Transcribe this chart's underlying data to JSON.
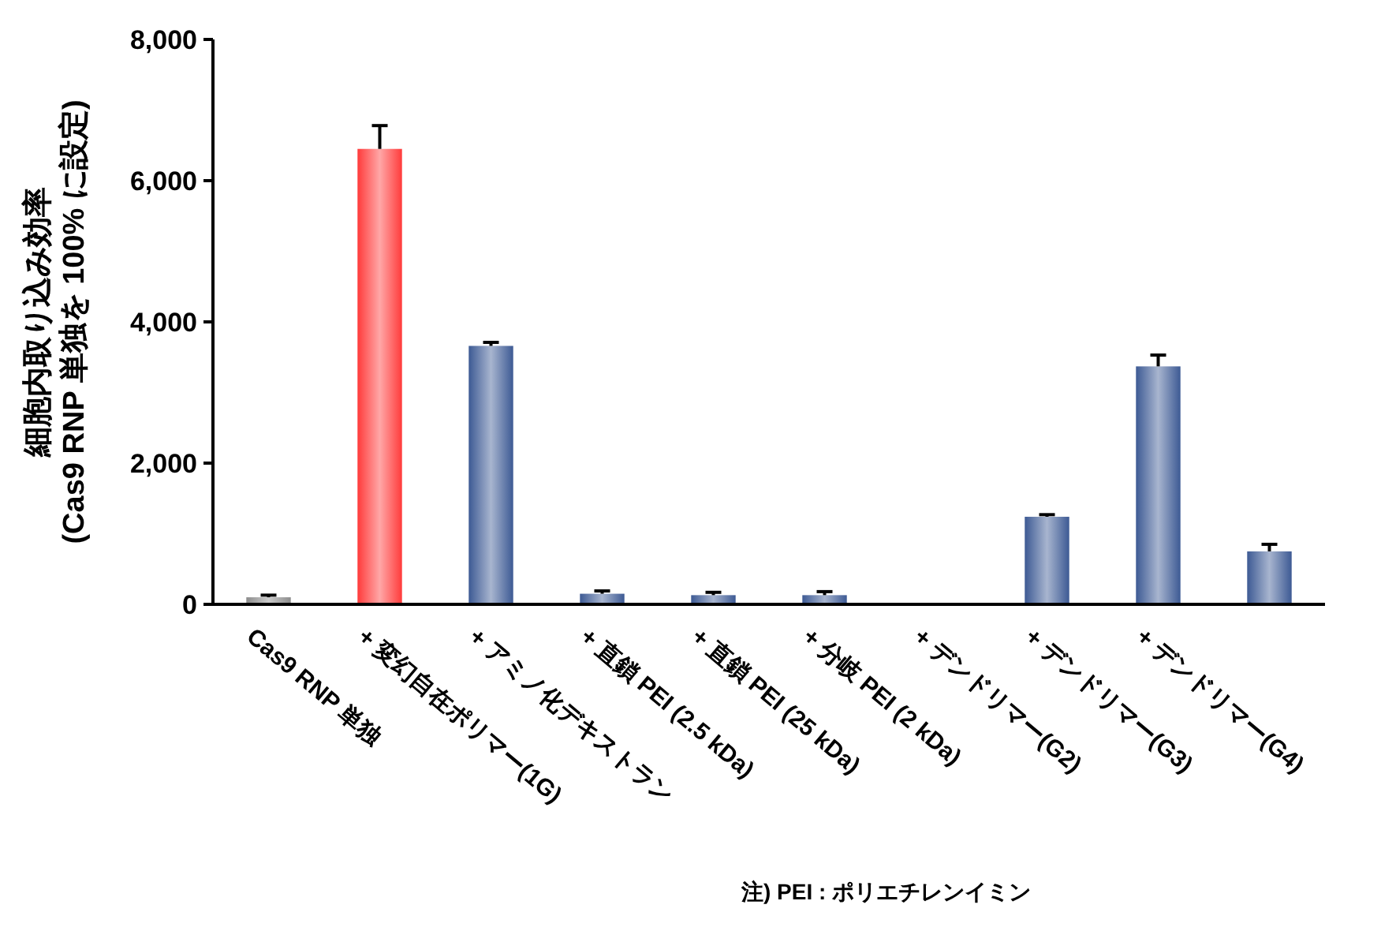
{
  "chart_data": {
    "type": "bar",
    "ylabel": "細胞内取り込み効率\n(Cas9 RNP 単独を 100% に設定)",
    "categories": [
      "Cas9 RNP 単独",
      "+ 変幻自在ポリマー(1G)",
      "+ アミノ化デキストラン",
      "+ 直鎖 PEI (2.5 kDa)",
      "+ 直鎖 PEI (25 kDa)",
      "+ 分岐 PEI (2 kDa)",
      "+ デンドリマー(G2)",
      "+ デンドリマー(G3)",
      "+ デンドリマー(G4)",
      null
    ],
    "values": [
      100,
      6450,
      3660,
      150,
      130,
      130,
      0,
      1240,
      3370,
      750
    ],
    "errors": [
      30,
      330,
      50,
      40,
      40,
      50,
      null,
      30,
      160,
      100
    ],
    "colors": [
      "#8c8c8c",
      "#ff3b3b",
      "#3d5a94",
      "#3d5a94",
      "#3d5a94",
      "#3d5a94",
      "#3d5a94",
      "#3d5a94",
      "#3d5a94",
      "#3d5a94"
    ],
    "ylim": [
      0,
      8000
    ],
    "yticks": [
      0,
      {
        "value": 2000,
        "label": "2,000"
      },
      {
        "value": 4000,
        "label": "4,000"
      },
      {
        "value": 6000,
        "label": "6,000"
      },
      {
        "value": 8000,
        "label": "8,000"
      }
    ],
    "grid": false,
    "annotations": [
      "注) PEI : ポリエチレンイミン"
    ]
  }
}
